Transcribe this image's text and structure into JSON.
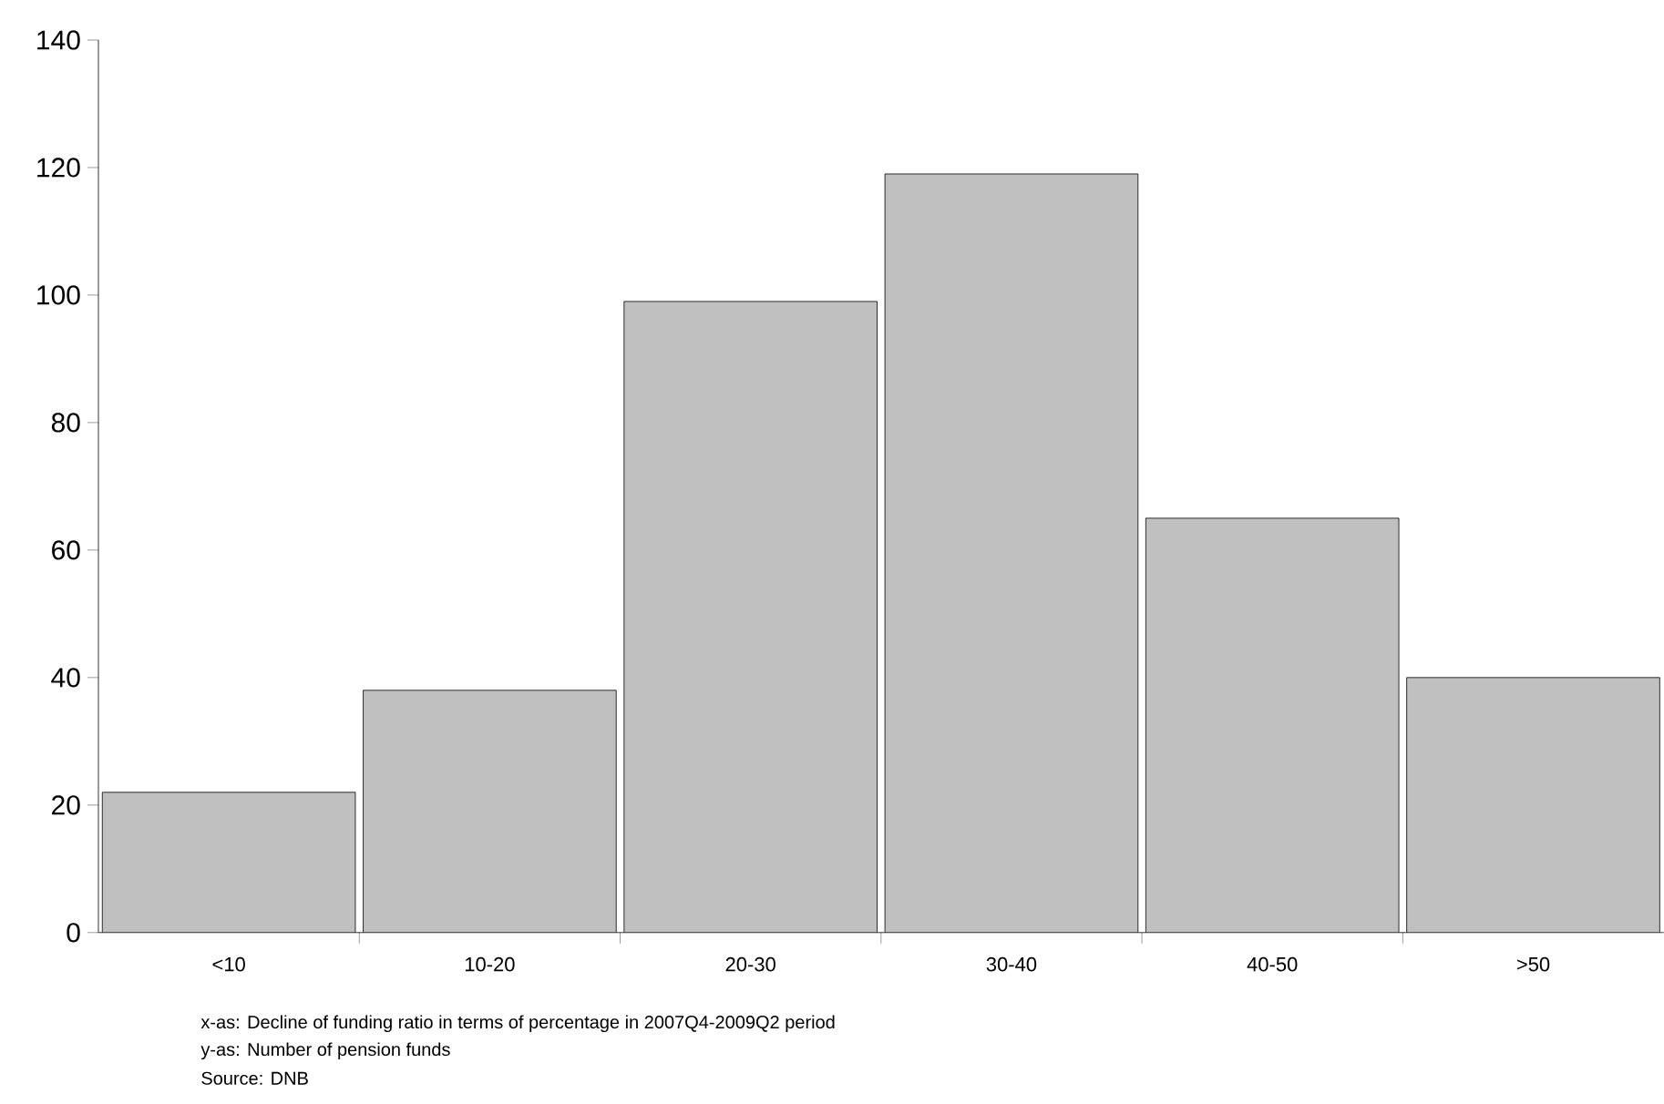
{
  "chart_data": {
    "type": "bar",
    "categories": [
      "<10",
      "10-20",
      "20-30",
      "30-40",
      "40-50",
      ">50"
    ],
    "values": [
      22,
      38,
      99,
      119,
      65,
      40
    ],
    "color": "#c0c0c0",
    "ylim": [
      0,
      140
    ],
    "yticks": [
      0,
      20,
      40,
      60,
      80,
      100,
      120,
      140
    ],
    "annotations": [
      "x-as: Decline of funding ratio in terms of percentage in 2007Q4-2009Q2 period",
      "y-as: Number of pension funds",
      "Source: DNB"
    ]
  }
}
